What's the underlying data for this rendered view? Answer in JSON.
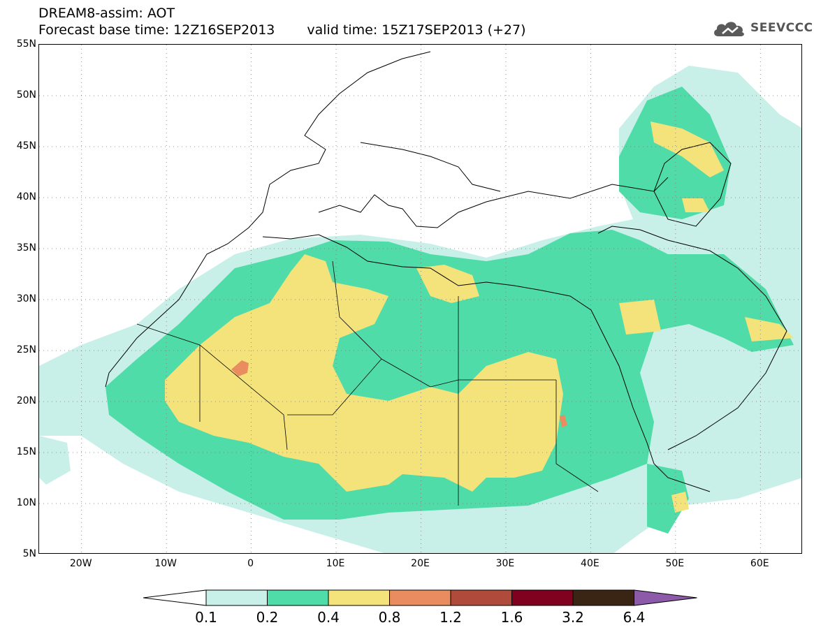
{
  "title": {
    "line1": "DREAM8-assim: AOT",
    "base_time": "Forecast base time: 12Z16SEP2013",
    "valid_time": "valid time: 15Z17SEP2013 (+27)"
  },
  "logo": {
    "text": "SEEVCCC",
    "icon": "cloud-icon",
    "color": "#555555"
  },
  "map": {
    "projection": "lat-lon",
    "lon_range": [
      -25,
      65
    ],
    "lat_range": [
      5,
      55
    ],
    "lat_ticks": [
      "55N",
      "50N",
      "45N",
      "40N",
      "35N",
      "30N",
      "25N",
      "20N",
      "15N",
      "10N",
      "5N"
    ],
    "lon_ticks": [
      "20W",
      "10W",
      "0",
      "10E",
      "20E",
      "30E",
      "40E",
      "50E",
      "60E"
    ],
    "grid": "dotted"
  },
  "colorbar": {
    "labels": [
      "0.1",
      "0.2",
      "0.4",
      "0.8",
      "1.2",
      "1.6",
      "3.2",
      "6.4"
    ],
    "colors": [
      "#ffffff",
      "#c8f0e8",
      "#50dca8",
      "#f4e37a",
      "#e98c60",
      "#b04a3a",
      "#800020",
      "#3a2414",
      "#8c5aa8"
    ]
  },
  "legend_colors": {
    "aot_0_1": "#c8f0e8",
    "aot_0_2": "#50dca8",
    "aot_0_4": "#f4e37a",
    "aot_0_8": "#e98c60"
  }
}
